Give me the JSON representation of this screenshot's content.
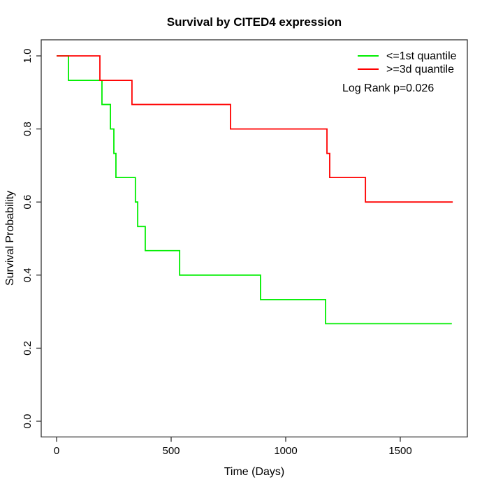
{
  "chart_data": {
    "type": "line",
    "subtype": "kaplan-meier-step",
    "title": "Survival by CITED4 expression",
    "xlabel": "Time (Days)",
    "ylabel": "Survival Probability",
    "annotation": "Log Rank p=0.026",
    "xlim": [
      0,
      1730
    ],
    "ylim": [
      0.0,
      1.0
    ],
    "grid": false,
    "legend_position": "top-right",
    "xticks": {
      "values": [
        0,
        500,
        1000,
        1500
      ],
      "labels": [
        "0",
        "500",
        "1000",
        "1500"
      ]
    },
    "yticks": {
      "values": [
        0.0,
        0.2,
        0.4,
        0.6,
        0.8,
        1.0
      ],
      "labels": [
        "0.0",
        "0.2",
        "0.4",
        "0.6",
        "0.8",
        "1.0"
      ]
    },
    "series": [
      {
        "name": "<=1st quantile",
        "color": "#00ee00",
        "times": [
          0,
          52,
          198,
          235,
          250,
          259,
          344,
          354,
          387,
          537,
          890,
          1174
        ],
        "surv": [
          1.0,
          0.933,
          0.867,
          0.8,
          0.733,
          0.667,
          0.6,
          0.533,
          0.467,
          0.4,
          0.333,
          0.267
        ],
        "end_time": 1725
      },
      {
        "name": ">=3d quantile",
        "color": "#ff0000",
        "times": [
          0,
          189,
          329,
          759,
          1180,
          1192,
          1348
        ],
        "surv": [
          1.0,
          0.933,
          0.867,
          0.8,
          0.733,
          0.667,
          0.6
        ],
        "end_time": 1729
      }
    ]
  }
}
